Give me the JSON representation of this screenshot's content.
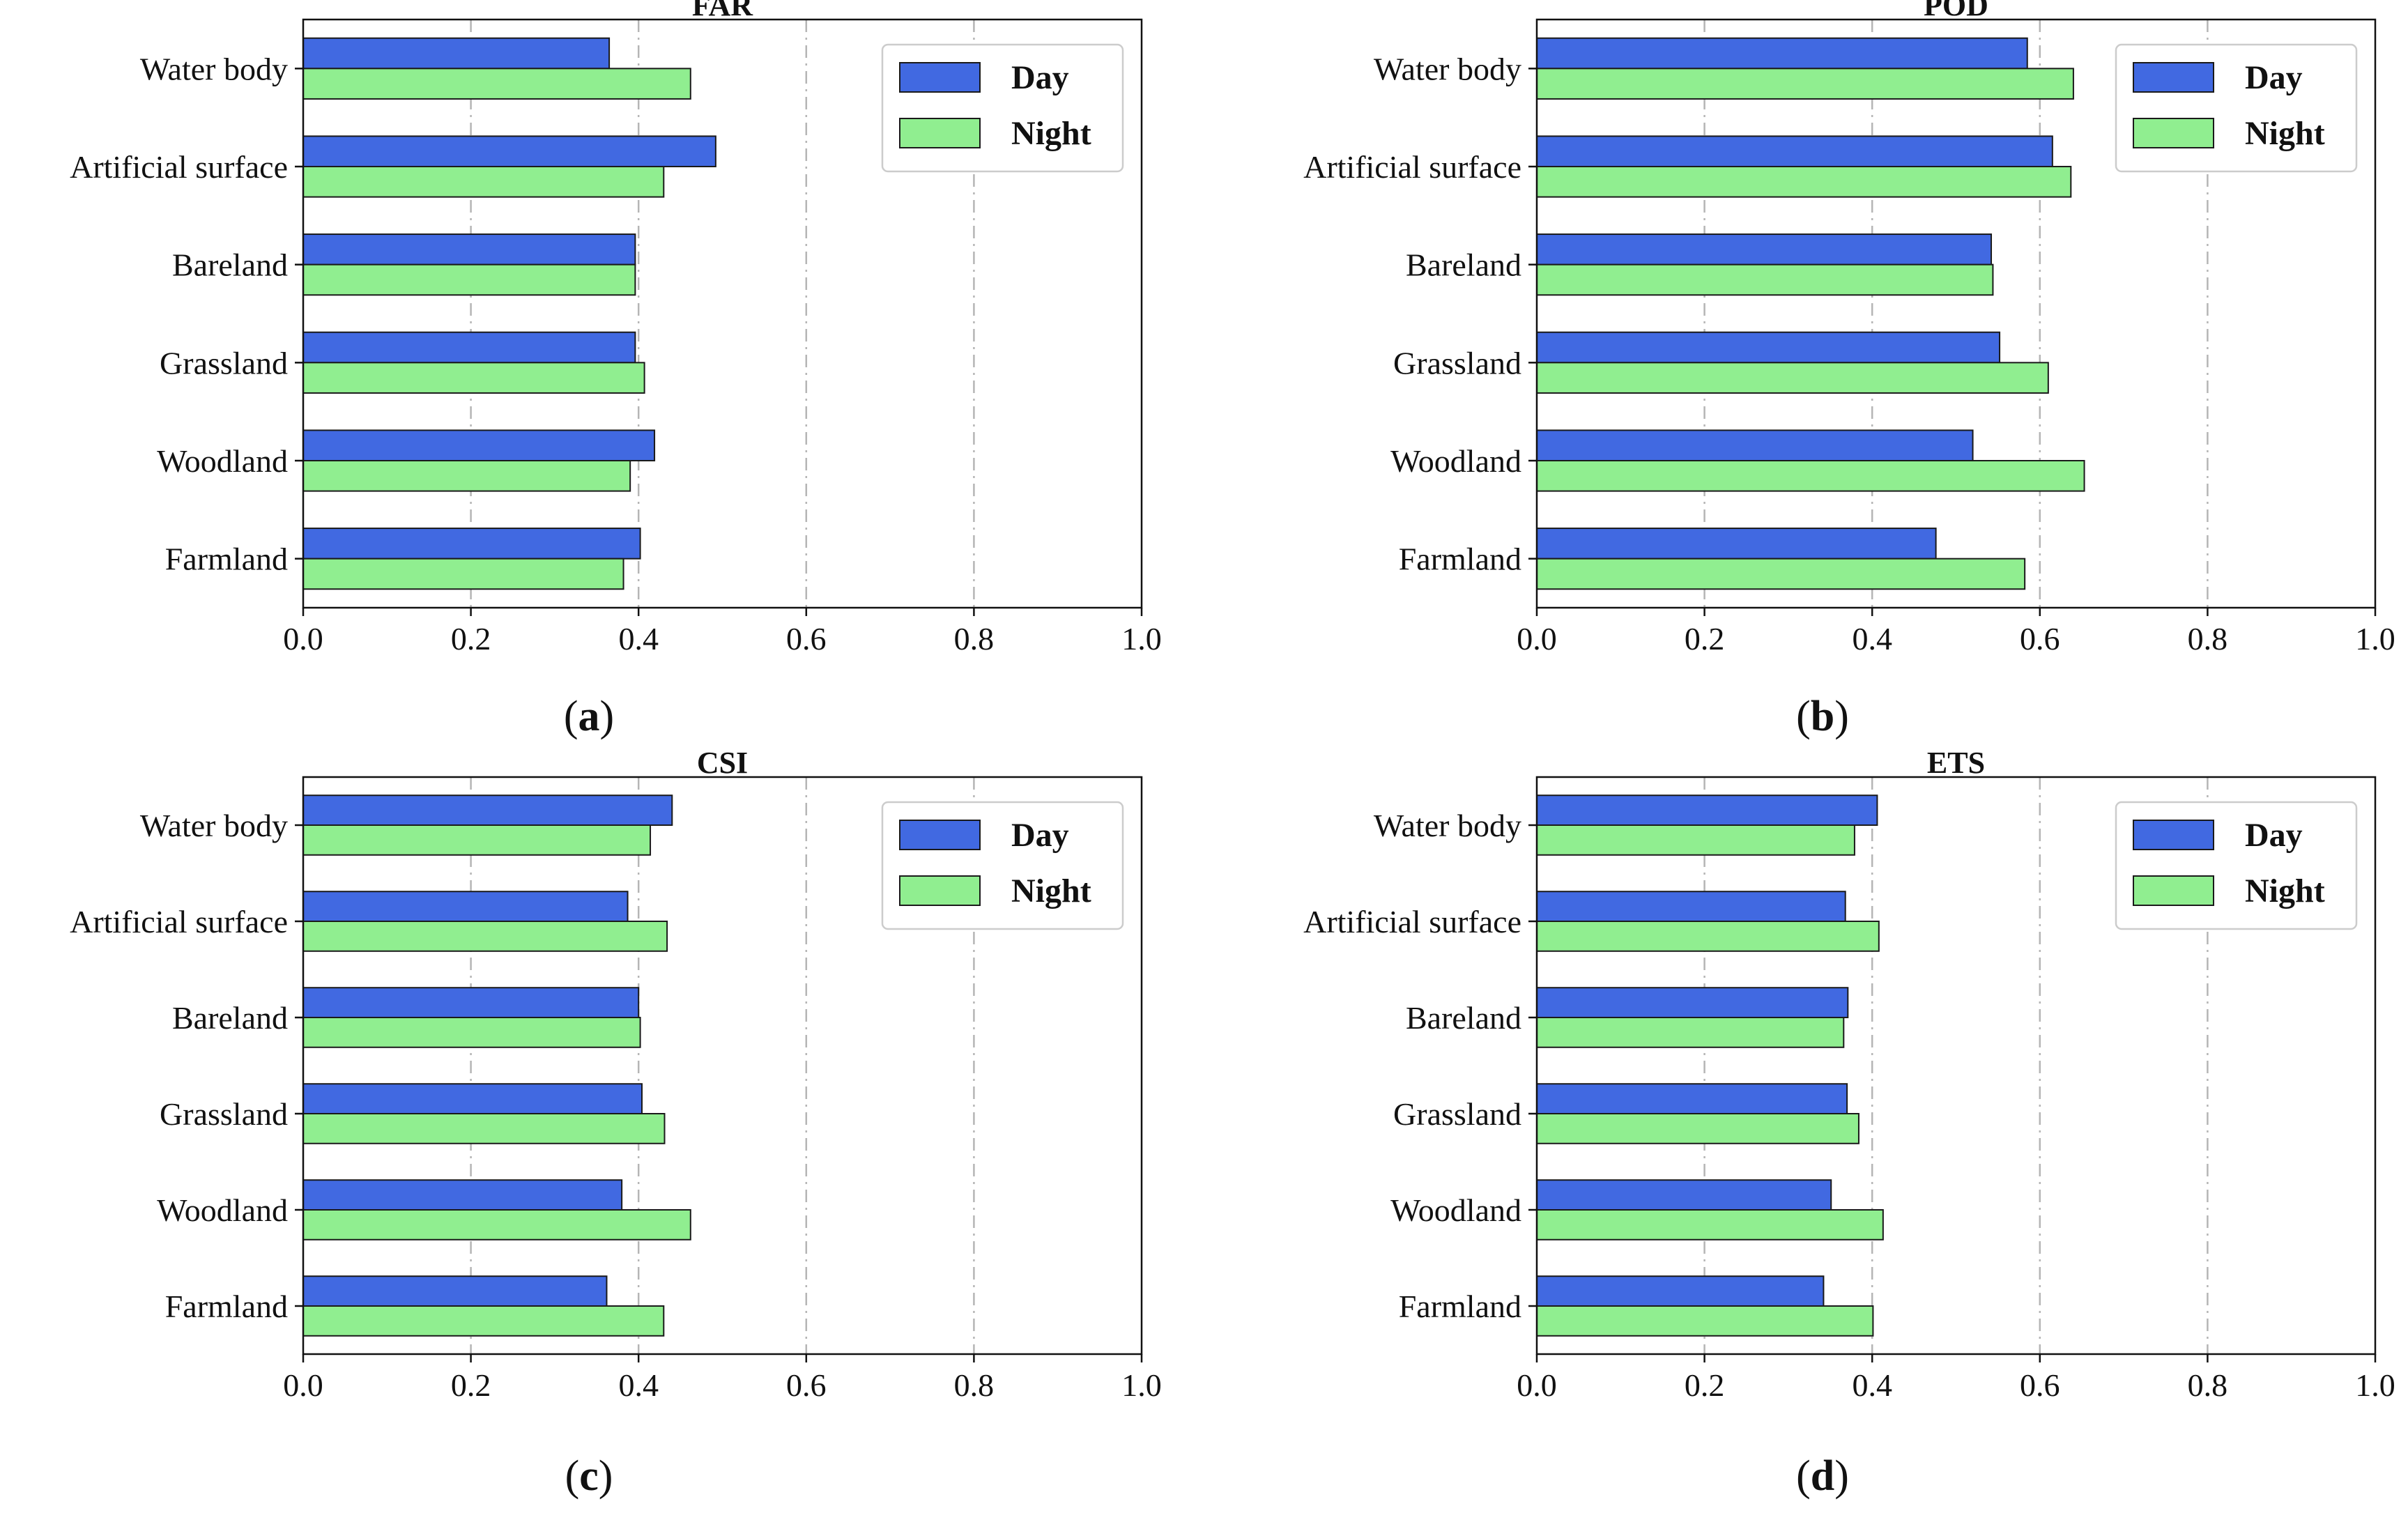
{
  "figure": {
    "caption_letters": [
      "a",
      "b",
      "c",
      "d"
    ]
  },
  "colors": {
    "day": "#4169e1",
    "night": "#90ee90",
    "edge": "#1a1a1a",
    "grid": "#b5b5b5"
  },
  "chart_data": [
    {
      "id": "a",
      "type": "bar",
      "orientation": "horizontal",
      "title": "FAR",
      "categories": [
        "Water body",
        "Artificial surface",
        "Bareland",
        "Grassland",
        "Woodland",
        "Farmland"
      ],
      "series": [
        {
          "name": "Day",
          "values": [
            0.365,
            0.492,
            0.396,
            0.396,
            0.419,
            0.402
          ]
        },
        {
          "name": "Night",
          "values": [
            0.462,
            0.43,
            0.396,
            0.407,
            0.39,
            0.382
          ]
        }
      ],
      "xlim": [
        0.0,
        1.0
      ],
      "xticks": [
        "0.0",
        "0.2",
        "0.4",
        "0.6",
        "0.8",
        "1.0"
      ],
      "grid": "vertical dash-dot",
      "legend": "top-right",
      "caption": "(a)"
    },
    {
      "id": "b",
      "type": "bar",
      "orientation": "horizontal",
      "title": "POD",
      "categories": [
        "Water body",
        "Artificial surface",
        "Bareland",
        "Grassland",
        "Woodland",
        "Farmland"
      ],
      "series": [
        {
          "name": "Day",
          "values": [
            0.585,
            0.615,
            0.542,
            0.552,
            0.52,
            0.476
          ]
        },
        {
          "name": "Night",
          "values": [
            0.64,
            0.637,
            0.544,
            0.61,
            0.653,
            0.582
          ]
        }
      ],
      "xlim": [
        0.0,
        1.0
      ],
      "xticks": [
        "0.0",
        "0.2",
        "0.4",
        "0.6",
        "0.8",
        "1.0"
      ],
      "grid": "vertical dash-dot",
      "legend": "top-right",
      "caption": "(b)"
    },
    {
      "id": "c",
      "type": "bar",
      "orientation": "horizontal",
      "title": "CSI",
      "categories": [
        "Water body",
        "Artificial surface",
        "Bareland",
        "Grassland",
        "Woodland",
        "Farmland"
      ],
      "series": [
        {
          "name": "Day",
          "values": [
            0.44,
            0.387,
            0.4,
            0.404,
            0.38,
            0.362
          ]
        },
        {
          "name": "Night",
          "values": [
            0.414,
            0.434,
            0.402,
            0.431,
            0.462,
            0.43
          ]
        }
      ],
      "xlim": [
        0.0,
        1.0
      ],
      "xticks": [
        "0.0",
        "0.2",
        "0.4",
        "0.6",
        "0.8",
        "1.0"
      ],
      "grid": "vertical dash-dot",
      "legend": "top-right",
      "caption": "(c)"
    },
    {
      "id": "d",
      "type": "bar",
      "orientation": "horizontal",
      "title": "ETS",
      "categories": [
        "Water body",
        "Artificial surface",
        "Bareland",
        "Grassland",
        "Woodland",
        "Farmland"
      ],
      "series": [
        {
          "name": "Day",
          "values": [
            0.406,
            0.368,
            0.371,
            0.37,
            0.351,
            0.342
          ]
        },
        {
          "name": "Night",
          "values": [
            0.379,
            0.408,
            0.366,
            0.384,
            0.413,
            0.401
          ]
        }
      ],
      "xlim": [
        0.0,
        1.0
      ],
      "xticks": [
        "0.0",
        "0.2",
        "0.4",
        "0.6",
        "0.8",
        "1.0"
      ],
      "grid": "vertical dash-dot",
      "legend": "top-right",
      "caption": "(d)"
    }
  ]
}
